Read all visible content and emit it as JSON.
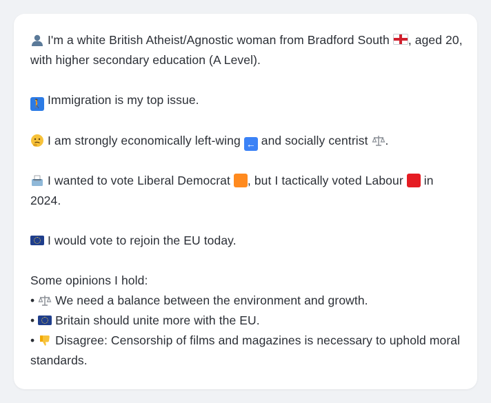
{
  "message": {
    "para1": {
      "text": "I'm a white British Atheist/Agnostic woman from Bradford South",
      "text_after_flag": ", aged 20, with higher secondary education (A Level)."
    },
    "para2": {
      "text": "Immigration is my top issue."
    },
    "para3": {
      "text_1": "I am strongly economically left-wing",
      "text_2": "and socially centrist",
      "text_3": "."
    },
    "para4": {
      "text_1": "I wanted to vote Liberal Democrat",
      "text_2": ", but I tactically voted Labour",
      "text_3": "in 2024."
    },
    "para5": {
      "text": "I would vote to rejoin the EU today."
    },
    "opinions": {
      "heading": "Some opinions I hold:",
      "items": [
        {
          "bullet": "•",
          "text": "We need a balance between the environment and growth."
        },
        {
          "bullet": "•",
          "text": "Britain should unite more with the EU."
        },
        {
          "bullet": "•",
          "text": "Disagree: Censorship of films and magazines is necessary to uphold moral standards."
        }
      ]
    }
  },
  "icons": {
    "person": "bust-in-silhouette-icon",
    "england_flag": "england-flag-icon",
    "immigration": "walking-person-icon",
    "thinking": "thinking-face-icon",
    "left_arrow": "left-arrow-icon",
    "scales": "balance-scale-icon",
    "ballot": "ballot-box-icon",
    "orange_square": "orange-square-icon",
    "red_square": "red-square-icon",
    "eu_flag": "eu-flag-icon",
    "thumbs_down": "thumbs-down-icon"
  },
  "colors": {
    "background": "#f0f2f5",
    "bubble": "#ffffff",
    "text": "#2b2f36",
    "libdem_orange": "#ff8a1f",
    "labour_red": "#e51c23",
    "eu_blue": "#1f3e8c"
  }
}
